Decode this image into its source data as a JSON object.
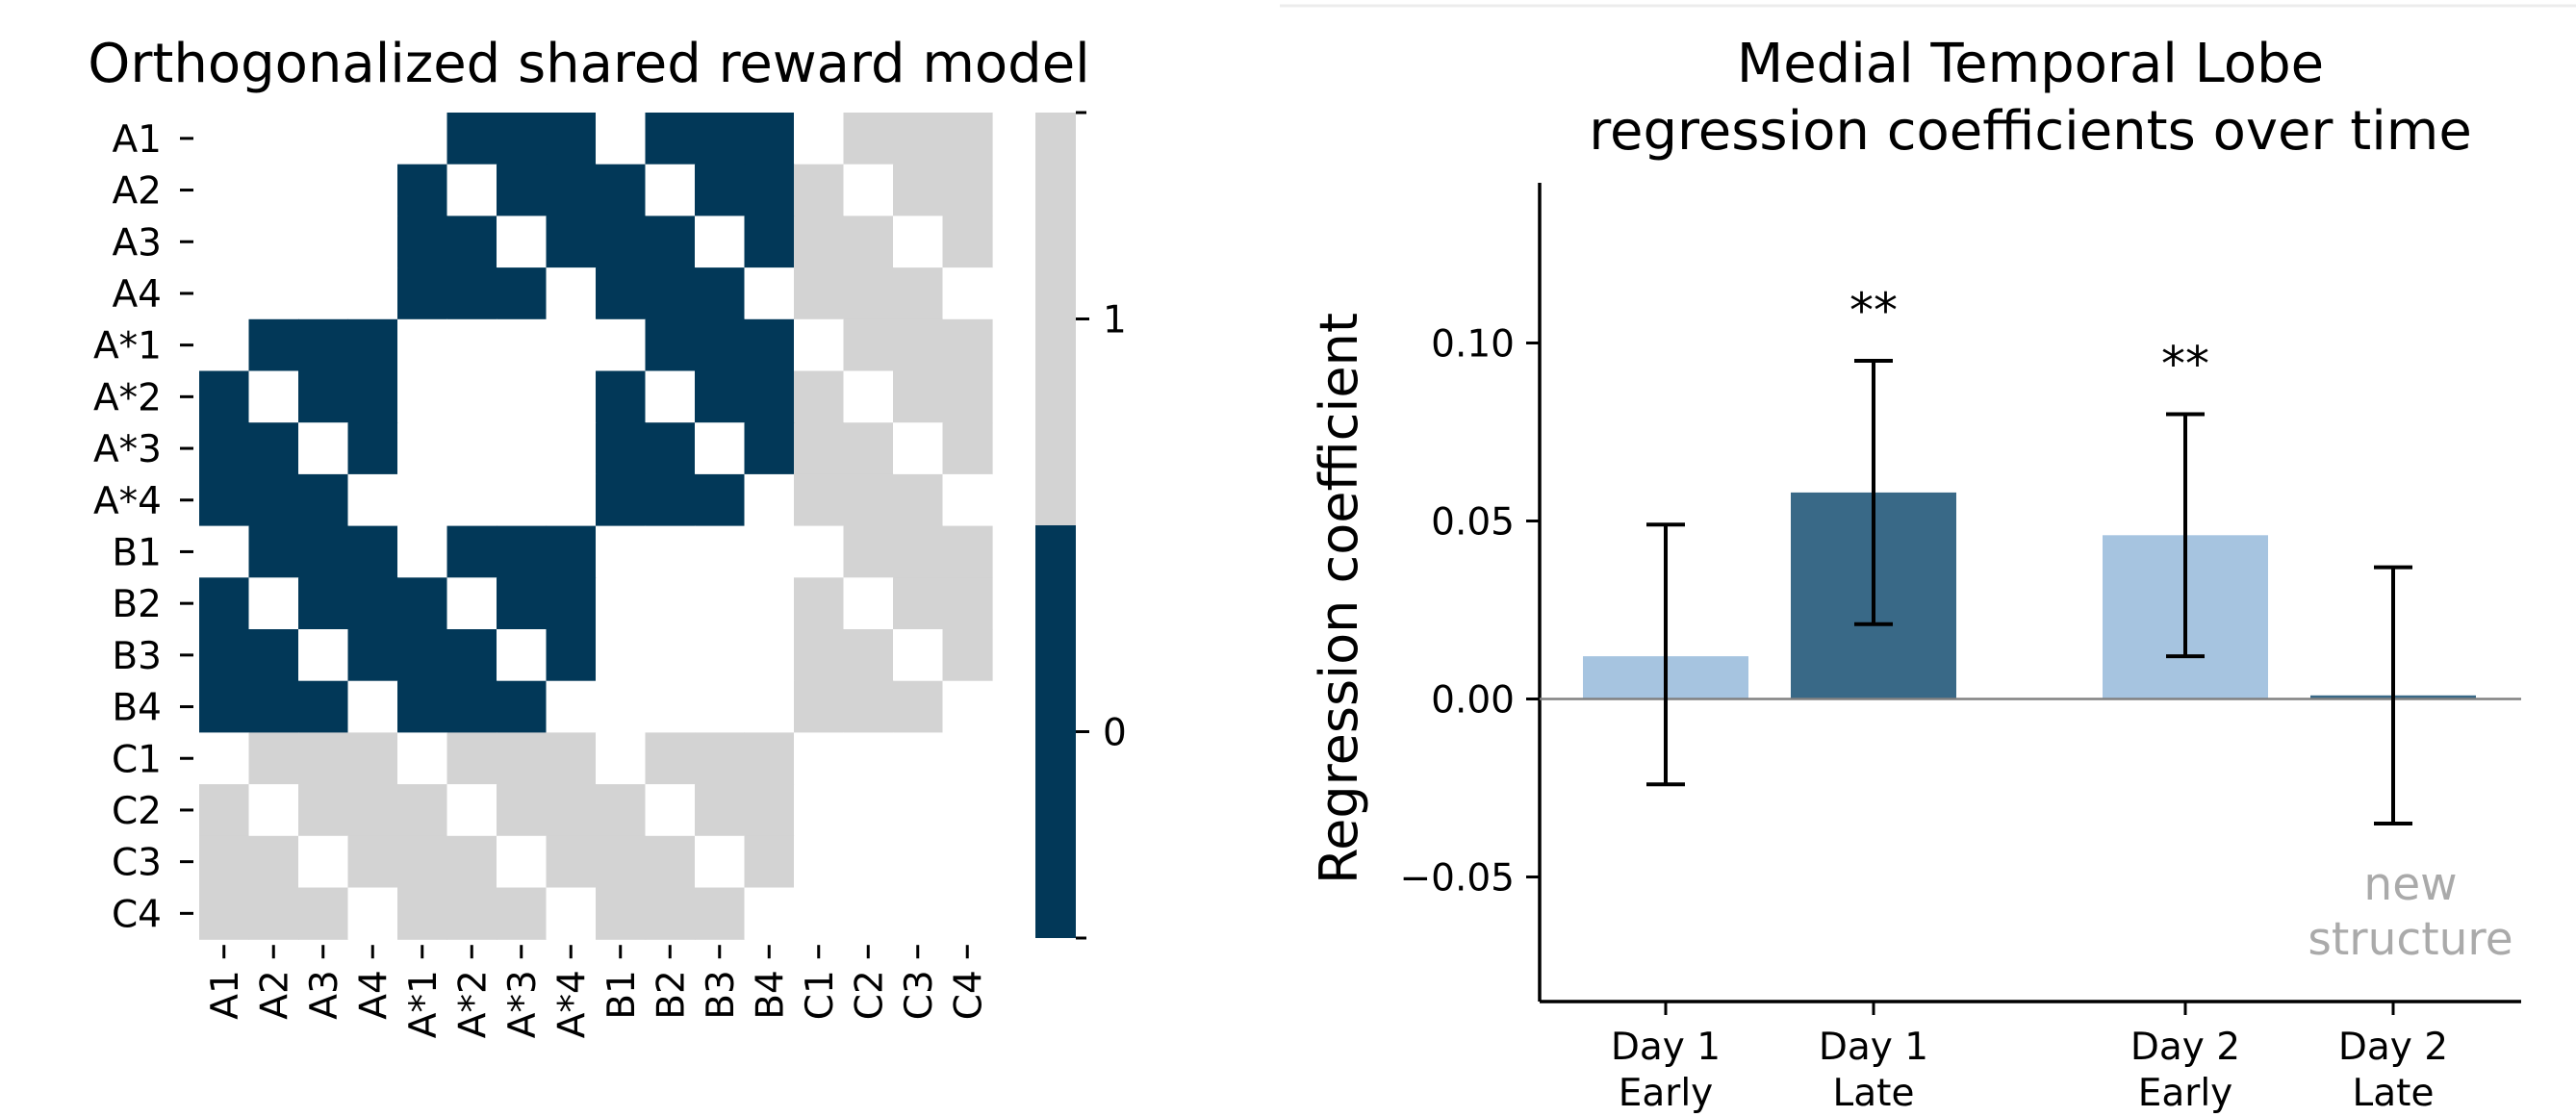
{
  "chart_data": [
    {
      "type": "heatmap",
      "title": "Orthogonalized shared reward model",
      "row_labels": [
        "A1",
        "A2",
        "A3",
        "A4",
        "A*1",
        "A*2",
        "A*3",
        "A*4",
        "B1",
        "B2",
        "B3",
        "B4",
        "C1",
        "C2",
        "C3",
        "C4"
      ],
      "col_labels": [
        "A1",
        "A2",
        "A3",
        "A4",
        "A*1",
        "A*2",
        "A*3",
        "A*4",
        "B1",
        "B2",
        "B3",
        "B4",
        "C1",
        "C2",
        "C3",
        "C4"
      ],
      "colorbar": {
        "ticks": [
          "1",
          "0"
        ],
        "colors": [
          "#d3d3d3",
          "#023858"
        ]
      },
      "legend_colors": {
        "zero": "#023858",
        "one": "#d3d3d3",
        "blank": "#ffffff"
      },
      "matrix": [
        [
          -1,
          -1,
          -1,
          -1,
          -1,
          0,
          0,
          0,
          -1,
          0,
          0,
          0,
          -1,
          1,
          1,
          1
        ],
        [
          -1,
          -1,
          -1,
          -1,
          0,
          -1,
          0,
          0,
          0,
          -1,
          0,
          0,
          1,
          -1,
          1,
          1
        ],
        [
          -1,
          -1,
          -1,
          -1,
          0,
          0,
          -1,
          0,
          0,
          0,
          -1,
          0,
          1,
          1,
          -1,
          1
        ],
        [
          -1,
          -1,
          -1,
          -1,
          0,
          0,
          0,
          -1,
          0,
          0,
          0,
          -1,
          1,
          1,
          1,
          -1
        ],
        [
          -1,
          0,
          0,
          0,
          -1,
          -1,
          -1,
          -1,
          -1,
          0,
          0,
          0,
          -1,
          1,
          1,
          1
        ],
        [
          0,
          -1,
          0,
          0,
          -1,
          -1,
          -1,
          -1,
          0,
          -1,
          0,
          0,
          1,
          -1,
          1,
          1
        ],
        [
          0,
          0,
          -1,
          0,
          -1,
          -1,
          -1,
          -1,
          0,
          0,
          -1,
          0,
          1,
          1,
          -1,
          1
        ],
        [
          0,
          0,
          0,
          -1,
          -1,
          -1,
          -1,
          -1,
          0,
          0,
          0,
          -1,
          1,
          1,
          1,
          -1
        ],
        [
          -1,
          0,
          0,
          0,
          -1,
          0,
          0,
          0,
          -1,
          -1,
          -1,
          -1,
          -1,
          1,
          1,
          1
        ],
        [
          0,
          -1,
          0,
          0,
          0,
          -1,
          0,
          0,
          -1,
          -1,
          -1,
          -1,
          1,
          -1,
          1,
          1
        ],
        [
          0,
          0,
          -1,
          0,
          0,
          0,
          -1,
          0,
          -1,
          -1,
          -1,
          -1,
          1,
          1,
          -1,
          1
        ],
        [
          0,
          0,
          0,
          -1,
          0,
          0,
          0,
          -1,
          -1,
          -1,
          -1,
          -1,
          1,
          1,
          1,
          -1
        ],
        [
          -1,
          1,
          1,
          1,
          -1,
          1,
          1,
          1,
          -1,
          1,
          1,
          1,
          -1,
          -1,
          -1,
          -1
        ],
        [
          1,
          -1,
          1,
          1,
          1,
          -1,
          1,
          1,
          1,
          -1,
          1,
          1,
          -1,
          -1,
          -1,
          -1
        ],
        [
          1,
          1,
          -1,
          1,
          1,
          1,
          -1,
          1,
          1,
          1,
          -1,
          1,
          -1,
          -1,
          -1,
          -1
        ],
        [
          1,
          1,
          1,
          -1,
          1,
          1,
          1,
          -1,
          1,
          1,
          1,
          -1,
          -1,
          -1,
          -1,
          -1
        ]
      ]
    },
    {
      "type": "bar",
      "title": [
        "Medial Temporal Lobe",
        "regression coefficients over time"
      ],
      "xlabel": "",
      "ylabel": "Regression coefficient",
      "ylim": [
        -0.085,
        0.145
      ],
      "yticks": [
        -0.05,
        0.0,
        0.05,
        0.1
      ],
      "ytick_labels": [
        "−0.05",
        "0.00",
        "0.05",
        "0.10"
      ],
      "categories": [
        [
          "Day 1",
          "Early"
        ],
        [
          "Day 1",
          "Late"
        ],
        [
          "Day 2",
          "Early"
        ],
        [
          "Day 2",
          "Late"
        ]
      ],
      "x_positions": [
        0,
        1,
        2.5,
        3.5
      ],
      "values": [
        0.012,
        0.058,
        0.046,
        0.001
      ],
      "error_low": [
        -0.024,
        0.021,
        0.012,
        -0.035
      ],
      "error_high": [
        0.049,
        0.095,
        0.08,
        0.037
      ],
      "bar_colors": [
        "#a6c4e0",
        "#396987",
        "#a6c4e0",
        "#396987"
      ],
      "significance": [
        "",
        "**",
        "**",
        ""
      ],
      "annotation": {
        "lines": [
          "new",
          "structure"
        ],
        "color": "#aaaaaa"
      }
    }
  ]
}
